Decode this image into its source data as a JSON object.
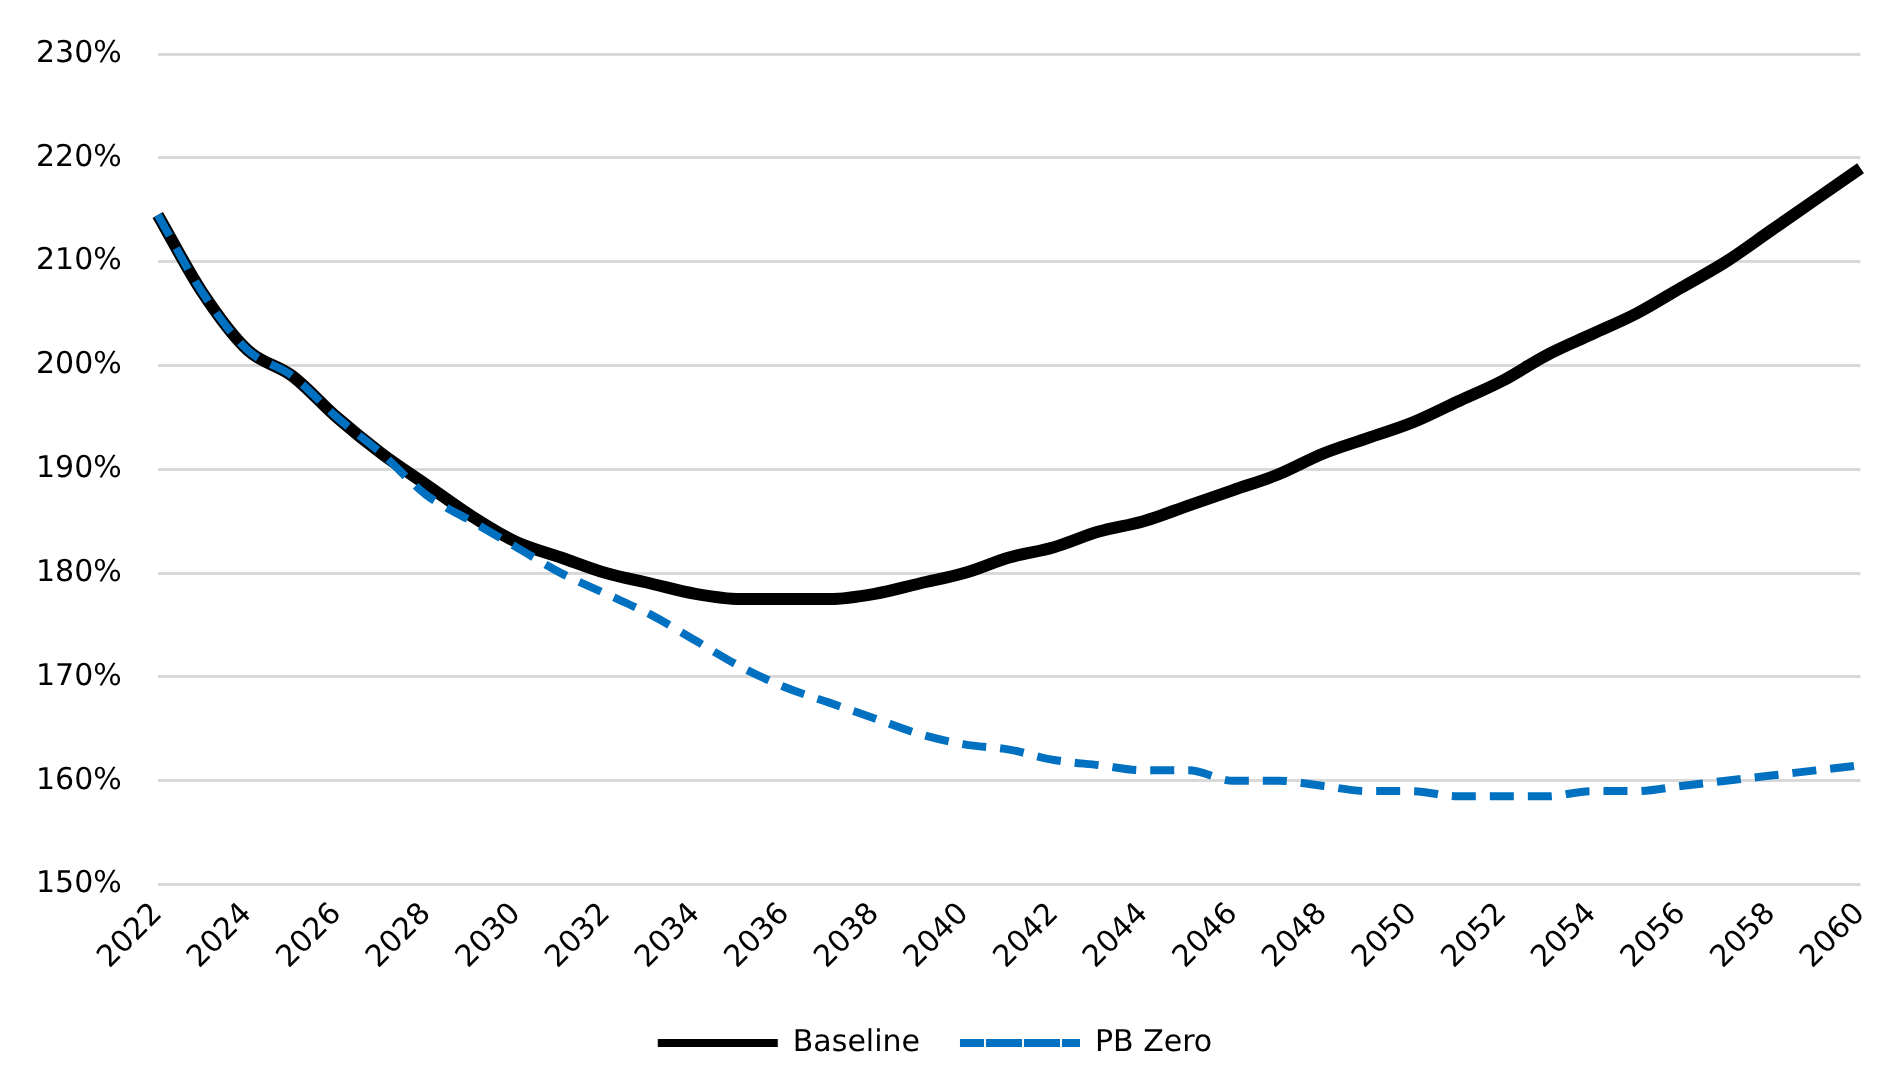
{
  "chart_data": {
    "type": "line",
    "categories": [
      "2022",
      null,
      "2024",
      null,
      "2026",
      null,
      "2028",
      null,
      "2030",
      null,
      "2032",
      null,
      "2034",
      null,
      "2036",
      null,
      "2038",
      null,
      "2040",
      null,
      "2042",
      null,
      "2044",
      null,
      "2046",
      null,
      "2048",
      null,
      "2050",
      null,
      "2052",
      null,
      "2054",
      null,
      "2056",
      null,
      "2058",
      null,
      "2060"
    ],
    "series": [
      {
        "name": "Baseline",
        "color": "#000000",
        "line_style": "solid",
        "values": [
          214.5,
          207,
          201.5,
          199,
          195,
          191.5,
          188.5,
          185.5,
          183,
          181.5,
          180,
          179,
          178,
          177.5,
          177.5,
          177.5,
          178,
          179,
          180,
          181.5,
          182.5,
          184,
          185,
          186.5,
          188,
          189.5,
          191.5,
          193,
          194.5,
          196.5,
          198.5,
          201,
          203,
          205,
          207.5,
          210,
          213,
          216,
          219
        ]
      },
      {
        "name": "PB Zero",
        "color": "#0070c0",
        "line_style": "dashed",
        "values": [
          214.5,
          207,
          201.5,
          199,
          195,
          191.5,
          187.5,
          185,
          182.5,
          180,
          178,
          176,
          173.5,
          171,
          169,
          167.5,
          166,
          164.5,
          163.5,
          163,
          162,
          161.5,
          161,
          161,
          160,
          160,
          159.5,
          159,
          159,
          158.5,
          158.5,
          158.5,
          159,
          159,
          159.5,
          160,
          160.5,
          161,
          161.5
        ]
      }
    ],
    "ylim": [
      150,
      230
    ],
    "yticks": [
      {
        "value": 150,
        "label": "150%"
      },
      {
        "value": 160,
        "label": "160%"
      },
      {
        "value": 170,
        "label": "170%"
      },
      {
        "value": 180,
        "label": "180%"
      },
      {
        "value": 190,
        "label": "190%"
      },
      {
        "value": 200,
        "label": "200%"
      },
      {
        "value": 210,
        "label": "210%"
      },
      {
        "value": 220,
        "label": "220%"
      },
      {
        "value": 230,
        "label": "230%"
      }
    ],
    "grid": "y",
    "legend": "bottom",
    "marker": "none"
  }
}
